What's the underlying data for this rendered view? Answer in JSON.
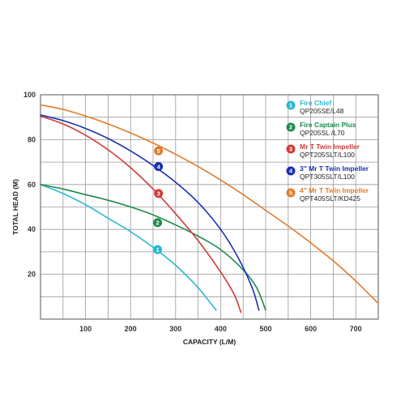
{
  "chart_data": {
    "type": "line",
    "xlabel": "CAPACITY (L/M)",
    "ylabel": "TOTAL HEAD (M)",
    "xlim": [
      0,
      750
    ],
    "ylim": [
      0,
      100
    ],
    "x_grid_step": 50,
    "y_grid_step": 10,
    "xticks": [
      100,
      200,
      300,
      400,
      500,
      600,
      700
    ],
    "yticks": [
      20,
      40,
      60,
      80,
      100
    ],
    "grid": true,
    "legend_placement": "right",
    "series": [
      {
        "id": 1,
        "marker": "1",
        "name": "Fire Chief",
        "model": "QP205SE/L48",
        "color": "#2ab7d3",
        "x": [
          0,
          50,
          100,
          150,
          200,
          250,
          300,
          350,
          390
        ],
        "y": [
          60,
          56,
          51,
          45,
          39,
          32,
          24,
          14,
          4
        ],
        "marker_x": 260,
        "marker_y": 31
      },
      {
        "id": 2,
        "marker": "2",
        "name": "Fire Captain Plus",
        "model": "QP205SL /L70",
        "color": "#1f8a4c",
        "x": [
          0,
          50,
          100,
          150,
          200,
          250,
          300,
          350,
          400,
          450,
          480,
          500
        ],
        "y": [
          60,
          58,
          55.5,
          53,
          50,
          46.5,
          42,
          37,
          31,
          22,
          14,
          4
        ],
        "marker_x": 260,
        "marker_y": 43
      },
      {
        "id": 3,
        "marker": "3",
        "name": "Mr T Twin Impeller",
        "model": "QPT205SLT/L100",
        "color": "#d03a3a",
        "x": [
          0,
          50,
          100,
          150,
          200,
          250,
          300,
          350,
          400,
          430,
          445
        ],
        "y": [
          90.5,
          87,
          82,
          75.5,
          67.5,
          58,
          47,
          35,
          21,
          11,
          3
        ],
        "marker_x": 262,
        "marker_y": 56
      },
      {
        "id": 4,
        "marker": "4",
        "name": "3\" Mr T Twin Impeller",
        "model": "QPT305SLT/L100",
        "color": "#1a2fb5",
        "x": [
          0,
          50,
          100,
          150,
          200,
          250,
          300,
          350,
          400,
          440,
          470,
          485
        ],
        "y": [
          91,
          88.5,
          85,
          80.5,
          75,
          68.5,
          61,
          52,
          40,
          27,
          14,
          4
        ],
        "marker_x": 262,
        "marker_y": 68
      },
      {
        "id": 5,
        "marker": "5",
        "name": "4\" Mr T Twin Impeller",
        "model": "QPT405SLT/KD425",
        "color": "#e07b2a",
        "x": [
          0,
          50,
          100,
          150,
          200,
          250,
          300,
          350,
          400,
          450,
          500,
          550,
          600,
          650,
          700,
          750
        ],
        "y": [
          95.5,
          93.5,
          90.5,
          87,
          83,
          78.5,
          73.5,
          68,
          62,
          55.5,
          48.5,
          41.5,
          34,
          26,
          17,
          7
        ],
        "marker_x": 262,
        "marker_y": 75
      }
    ]
  }
}
